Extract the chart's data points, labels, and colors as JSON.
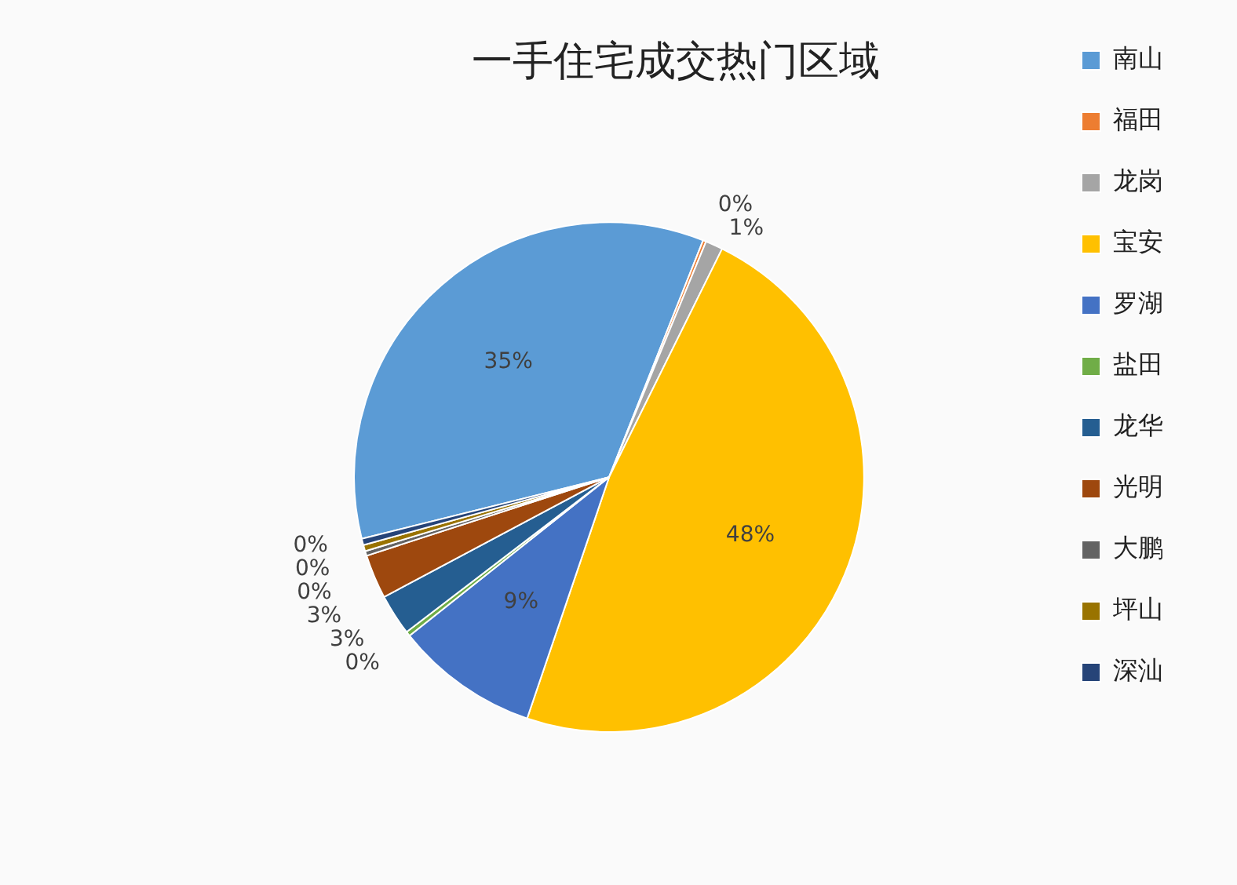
{
  "chart_data": {
    "type": "pie",
    "title": "一手住宅成交热门区域",
    "categories": [
      "南山",
      "福田",
      "龙岗",
      "宝安",
      "罗湖",
      "盐田",
      "龙华",
      "光明",
      "大鹏",
      "坪山",
      "深汕"
    ],
    "values": [
      34.9,
      0.2,
      1.1,
      47.9,
      9.1,
      0.3,
      2.6,
      2.8,
      0.3,
      0.4,
      0.4
    ],
    "value_labels": [
      "35%",
      "0%",
      "1%",
      "48%",
      "9%",
      "0%",
      "3%",
      "3%",
      "0%",
      "0%",
      "0%"
    ],
    "colors": [
      "#5b9bd5",
      "#ed7d31",
      "#a5a5a5",
      "#ffc000",
      "#4472c4",
      "#70ad47",
      "#255e91",
      "#9e480e",
      "#636363",
      "#997300",
      "#264478"
    ],
    "legend": "right"
  }
}
